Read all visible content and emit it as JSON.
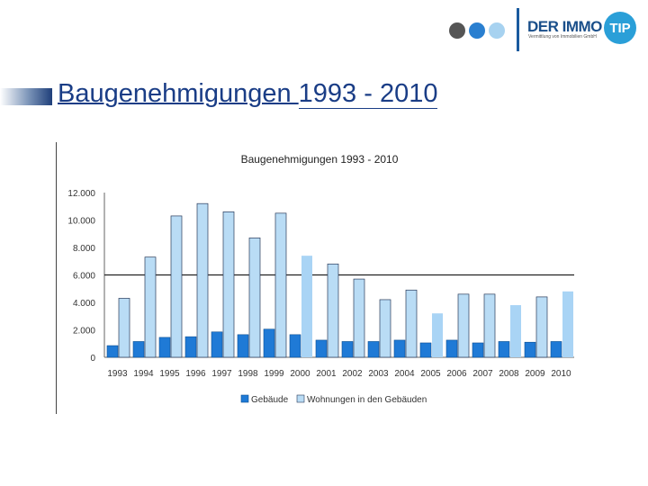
{
  "header": {
    "logo_name": "DER IMMO",
    "logo_badge": "TIP",
    "logo_tagline": "Vermittlung von Immobilien GmbH",
    "dot_colors": [
      "#555555",
      "#2a7fd0",
      "#a7d2f0"
    ]
  },
  "slide": {
    "title_part1": "Baugenehmigungen ",
    "title_part2": "1993 - 2010"
  },
  "colors": {
    "gebaeude": "#1f7ad6",
    "wohnungen": "#b9dcf5",
    "wohnungen_light": "#a9d4f5",
    "title": "#1a3d86"
  },
  "chart_data": {
    "type": "bar",
    "title": "Baugenehmigungen 1993 - 2010",
    "xlabel": "",
    "ylabel": "",
    "ylim": [
      0,
      12000
    ],
    "yticks": [
      0,
      2000,
      4000,
      6000,
      8000,
      10000,
      12000
    ],
    "ytick_labels": [
      "0",
      "2.000",
      "4.000",
      "6.000",
      "8.000",
      "10.000",
      "12.000"
    ],
    "grid": "horizontal line at 6.000",
    "legend": "bottom",
    "categories": [
      "1993",
      "1994",
      "1995",
      "1996",
      "1997",
      "1998",
      "1999",
      "2000",
      "2001",
      "2002",
      "2003",
      "2004",
      "2005",
      "2006",
      "2007",
      "2008",
      "2009",
      "2010"
    ],
    "series": [
      {
        "name": "Gebäude",
        "values": [
          850,
          1150,
          1450,
          1500,
          1850,
          1650,
          2050,
          1650,
          1250,
          1150,
          1150,
          1250,
          1050,
          1250,
          1050,
          1150,
          1100,
          1150
        ]
      },
      {
        "name": "Wohnungen in den Gebäuden",
        "values": [
          4300,
          7300,
          10300,
          11200,
          10600,
          8700,
          10500,
          7400,
          6800,
          5700,
          4200,
          4900,
          3200,
          4600,
          4600,
          3800,
          4400,
          4800
        ]
      }
    ]
  }
}
